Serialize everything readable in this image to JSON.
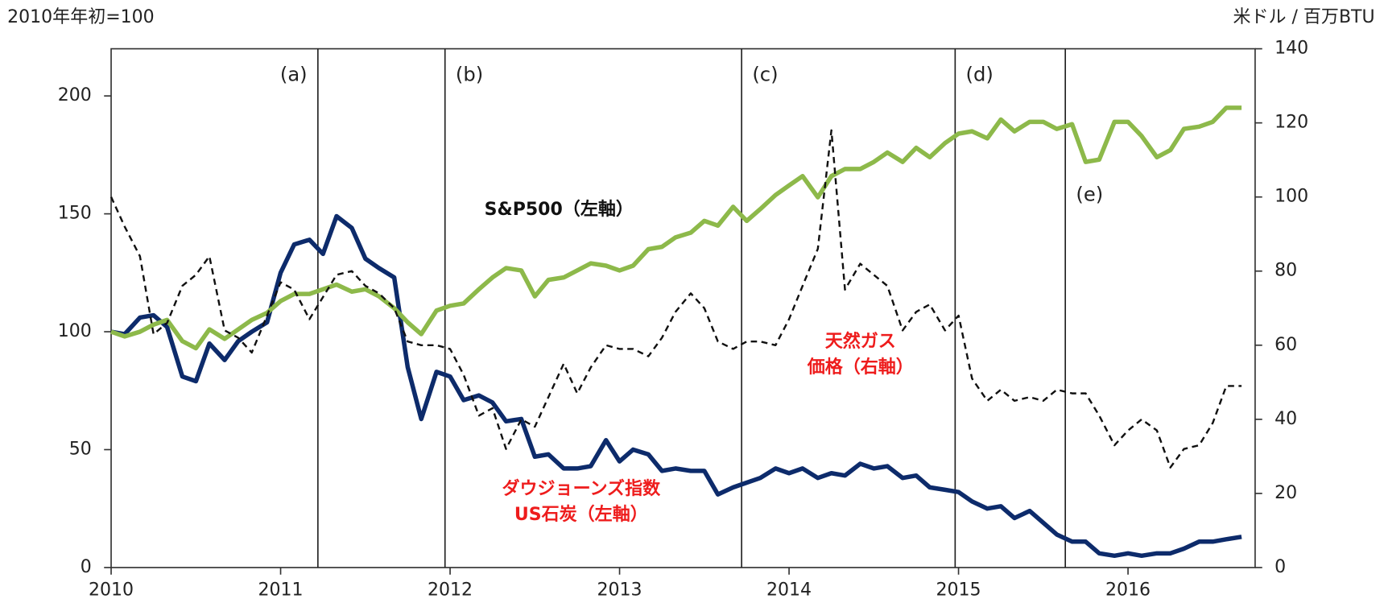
{
  "chart_data": {
    "type": "line",
    "y_axis_label": "2010年年初=100",
    "y2_axis_label": "米ドル / 百万BTU",
    "xlim": [
      2010,
      2016.75
    ],
    "xticks": [
      2010,
      2011,
      2012,
      2013,
      2014,
      2015,
      2016
    ],
    "ylim": [
      0,
      220
    ],
    "yticks": [
      0,
      50,
      100,
      150,
      200
    ],
    "y2lim": [
      0,
      140
    ],
    "y2ticks": [
      0,
      20,
      40,
      60,
      80,
      100,
      120,
      140
    ],
    "x": [
      2010,
      2010.08,
      2010.17,
      2010.25,
      2010.33,
      2010.42,
      2010.5,
      2010.58,
      2010.67,
      2010.75,
      2010.83,
      2010.92,
      2011,
      2011.08,
      2011.17,
      2011.25,
      2011.33,
      2011.42,
      2011.5,
      2011.58,
      2011.67,
      2011.75,
      2011.83,
      2011.92,
      2012,
      2012.08,
      2012.17,
      2012.25,
      2012.33,
      2012.42,
      2012.5,
      2012.58,
      2012.67,
      2012.75,
      2012.83,
      2012.92,
      2013,
      2013.08,
      2013.17,
      2013.25,
      2013.33,
      2013.42,
      2013.5,
      2013.58,
      2013.67,
      2013.75,
      2013.83,
      2013.92,
      2014,
      2014.08,
      2014.17,
      2014.25,
      2014.33,
      2014.42,
      2014.5,
      2014.58,
      2014.67,
      2014.75,
      2014.83,
      2014.92,
      2015,
      2015.08,
      2015.17,
      2015.25,
      2015.33,
      2015.42,
      2015.5,
      2015.58,
      2015.67,
      2015.75,
      2015.83,
      2015.92,
      2016,
      2016.08,
      2016.17,
      2016.25,
      2016.33,
      2016.42,
      2016.5,
      2016.58,
      2016.67
    ],
    "series": [
      {
        "name": "S&P500（左軸）",
        "color": "#8db94a",
        "dash": false,
        "width": 5,
        "values": [
          100,
          98,
          100,
          103,
          105,
          96,
          93,
          101,
          97,
          101,
          105,
          108,
          113,
          116,
          116,
          118,
          120,
          117,
          118,
          115,
          110,
          104,
          99,
          109,
          111,
          112,
          118,
          123,
          127,
          126,
          115,
          122,
          123,
          126,
          129,
          128,
          126,
          128,
          135,
          136,
          140,
          142,
          147,
          145,
          153,
          147,
          152,
          158,
          162,
          166,
          157,
          166,
          169,
          169,
          172,
          176,
          172,
          178,
          174,
          180,
          184,
          185,
          182,
          190,
          185,
          189,
          189,
          186,
          188,
          172,
          173,
          189,
          189,
          183,
          174,
          177,
          186,
          187,
          189,
          195,
          195
        ]
      },
      {
        "name": "ダウジョーンズ指数 US石炭（左軸）",
        "color": "#0d2b6b",
        "dash": false,
        "width": 5,
        "values": [
          100,
          99,
          106,
          107,
          102,
          81,
          79,
          95,
          88,
          96,
          100,
          104,
          125,
          137,
          139,
          133,
          149,
          144,
          131,
          127,
          123,
          85,
          63,
          83,
          81,
          71,
          73,
          70,
          62,
          63,
          47,
          48,
          42,
          42,
          43,
          54,
          45,
          50,
          48,
          41,
          42,
          41,
          41,
          31,
          34,
          36,
          38,
          42,
          40,
          42,
          38,
          40,
          39,
          44,
          42,
          43,
          38,
          39,
          34,
          33,
          32,
          28,
          25,
          26,
          21,
          24,
          19,
          14,
          11,
          11,
          6,
          5,
          6,
          5,
          6,
          6,
          8,
          11,
          11,
          12,
          13
        ]
      },
      {
        "name": "天然ガス価格（右軸）",
        "color": "#111111",
        "dash": true,
        "width": 2.2,
        "axis": "y2",
        "values": [
          100,
          92,
          84,
          63,
          66,
          76,
          79,
          84,
          64,
          62,
          58,
          68,
          77,
          75,
          67,
          73,
          79,
          80,
          76,
          74,
          70,
          61,
          60,
          60,
          59,
          52,
          41,
          43,
          32,
          40,
          38,
          46,
          55,
          47,
          54,
          60,
          59,
          59,
          57,
          62,
          69,
          74,
          70,
          61,
          59,
          61,
          61,
          60,
          67,
          76,
          86,
          118,
          75,
          82,
          79,
          76,
          64,
          69,
          71,
          64,
          68,
          51,
          45,
          48,
          45,
          46,
          45,
          48,
          47,
          47,
          41,
          33,
          37,
          40,
          37,
          27,
          32,
          33,
          39,
          49,
          49
        ]
      }
    ],
    "events": [
      {
        "label": "(a)",
        "x": 2011.22
      },
      {
        "label": "(b)",
        "x": 2011.97
      },
      {
        "label": "(c)",
        "x": 2013.72
      },
      {
        "label": "(d)",
        "x": 2014.98
      },
      {
        "label": "(e)",
        "x": 2015.63
      }
    ],
    "annotations": [
      {
        "lines": [
          "S&P500（左軸）"
        ],
        "color": "#111111"
      },
      {
        "lines": [
          "天然ガス",
          "価格（右軸）"
        ],
        "color": "#ee1c1c"
      },
      {
        "lines": [
          "ダウジョーンズ指数",
          "US石炭（左軸）"
        ],
        "color": "#ee1c1c"
      }
    ]
  }
}
